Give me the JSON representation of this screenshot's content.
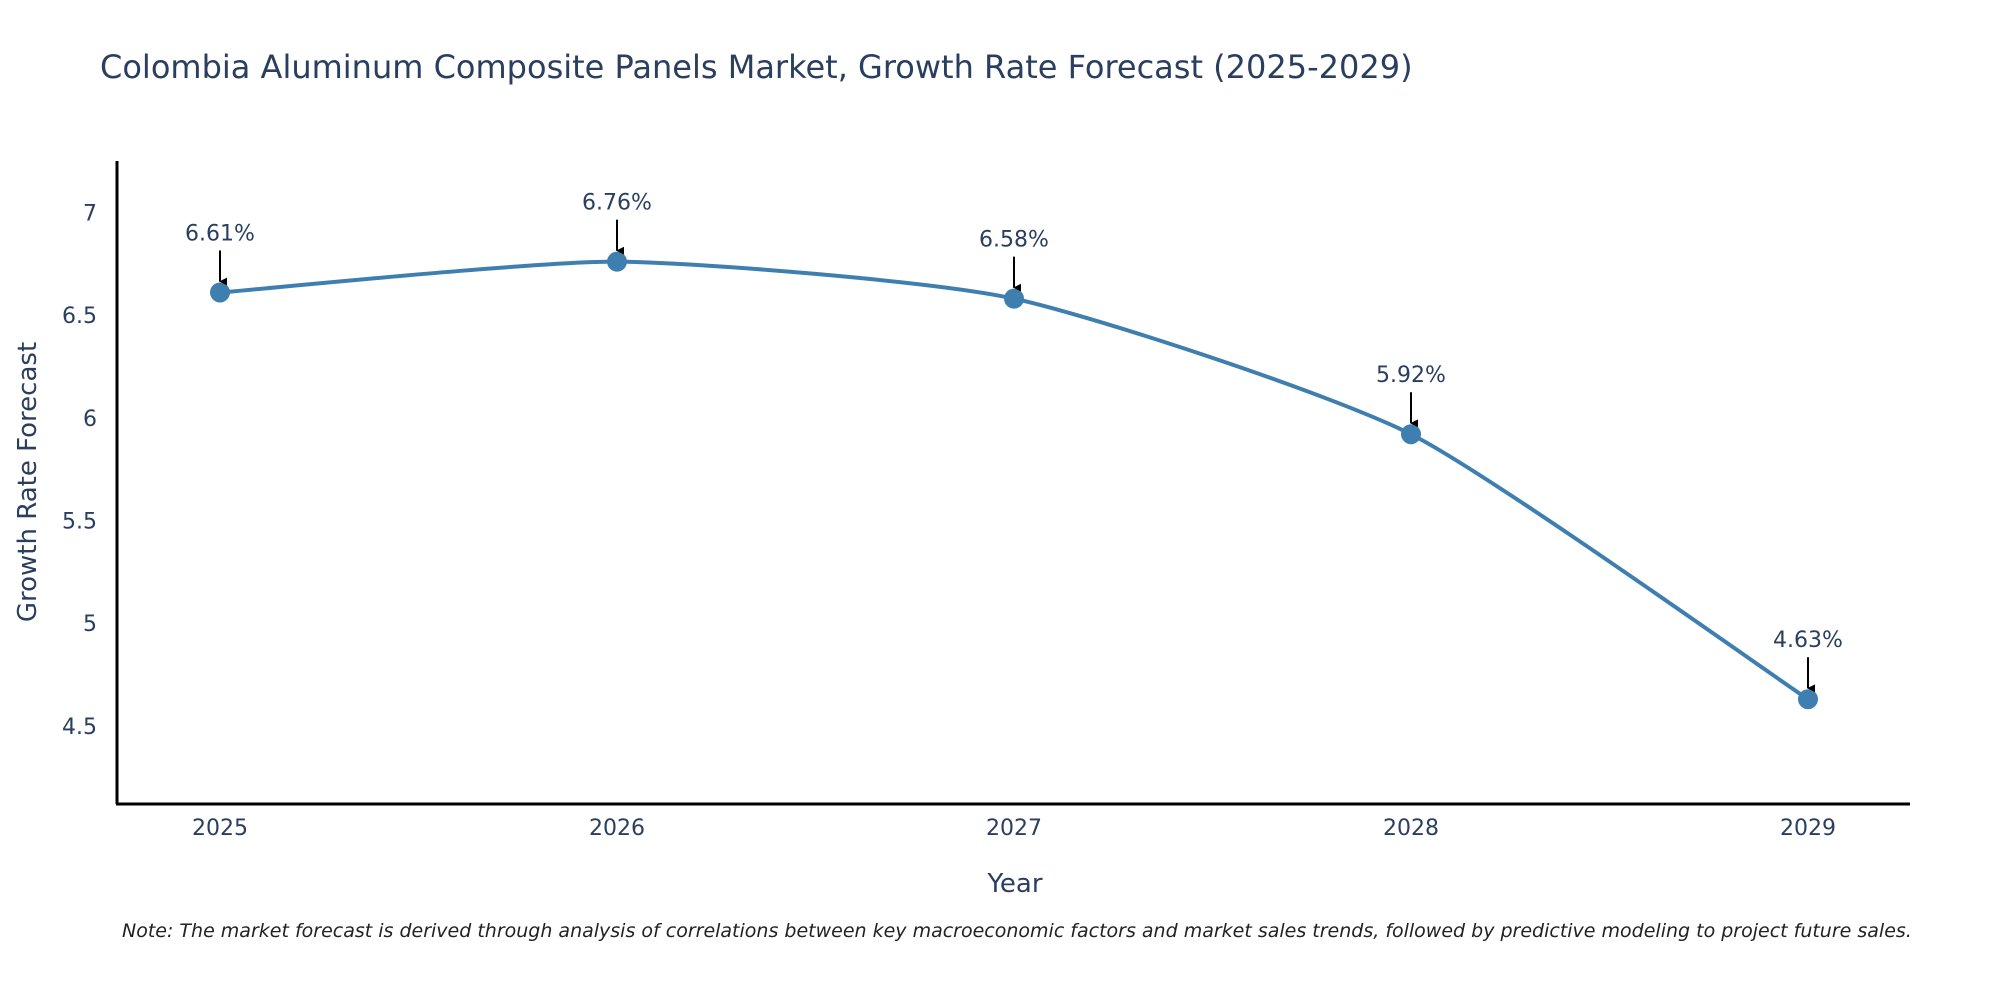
{
  "chart_data": {
    "type": "line",
    "title": "Colombia Aluminum Composite Panels Market, Growth Rate Forecast (2025-2029)",
    "xlabel": "Year",
    "ylabel": "Growth Rate Forecast",
    "categories": [
      "2025",
      "2026",
      "2027",
      "2028",
      "2029"
    ],
    "values": [
      6.61,
      6.76,
      6.58,
      5.92,
      4.63
    ],
    "data_labels": [
      "6.61%",
      "6.76%",
      "6.58%",
      "5.92%",
      "4.63%"
    ],
    "yticks": [
      4.5,
      5,
      5.5,
      6,
      6.5,
      7
    ],
    "ytick_labels": [
      "4.5",
      "5",
      "5.5",
      "6",
      "6.5",
      "7"
    ],
    "ylim": [
      4.12,
      7.25
    ],
    "line_color": "#3f7fb0",
    "marker_color": "#3f7fb0",
    "grid": false,
    "note": "Note: The market forecast is derived through analysis of correlations between key macroeconomic factors and market sales trends, followed by predictive modeling to project future sales."
  }
}
